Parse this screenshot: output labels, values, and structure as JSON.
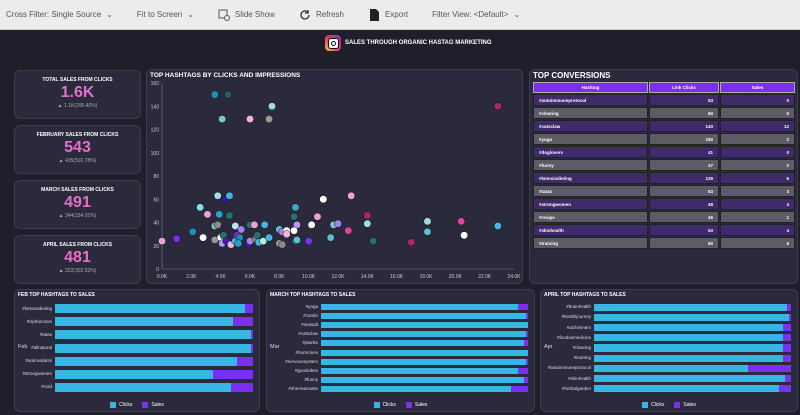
{
  "toolbar": {
    "cross_filter": "Cross Filter: Single Source",
    "fit": "Fit to Screen",
    "slideshow": "Slide Show",
    "refresh": "Refresh",
    "export": "Export",
    "filter_view": "Filter View: <Default>"
  },
  "title": "SALES THROUGH ORGANIC HASTAG MARKETING",
  "kpis": [
    {
      "label": "TOTAL SALES FROM CLICKS",
      "value": "1.6K",
      "delta": "1.1K(295.40%)"
    },
    {
      "label": "FEBRUARY SALES FROM CLICKS",
      "value": "543",
      "delta": "435(502.78%)"
    },
    {
      "label": "MARCH SALES FROM CLICKS",
      "value": "491",
      "delta": "344(334.01%)"
    },
    {
      "label": "APRIL SALES FROM CLICKS",
      "value": "481",
      "delta": "322(302.52%)"
    }
  ],
  "colors": {
    "clicks": "#35b6e3",
    "sales": "#7b2ff0",
    "kpi": "#e46fc9"
  },
  "chart_data": [
    {
      "type": "scatter",
      "title": "TOP HASHTAGS BY CLICKS AND IMPRESSIONS",
      "xlim": [
        0,
        24000
      ],
      "ylim": [
        0,
        160
      ],
      "xticks": [
        "0.0K",
        "2.0K",
        "4.0K",
        "6.0K",
        "8.0K",
        "10.0K",
        "12.0K",
        "14.0K",
        "16.0K",
        "18.0K",
        "20.0K",
        "22.0K",
        "24.0K"
      ],
      "yticks": [
        "0",
        "20",
        "40",
        "60",
        "80",
        "100",
        "120",
        "140",
        "160"
      ],
      "points": [
        [
          3.6,
          150,
          "#1e8fb5"
        ],
        [
          4.5,
          150,
          "#2a5e66"
        ],
        [
          4.1,
          129,
          "#7cc6cc"
        ],
        [
          6.0,
          129,
          "#f7b3dd"
        ],
        [
          7.3,
          129,
          "#9a9a9a"
        ],
        [
          7.5,
          140,
          "#9fdde3"
        ],
        [
          22.9,
          140,
          "#b0236e"
        ],
        [
          3.8,
          63,
          "#9fdde3"
        ],
        [
          4.3,
          60,
          "#3a1aa0"
        ],
        [
          4.6,
          63,
          "#3fb8e0"
        ],
        [
          2.6,
          53,
          "#7fe0f0"
        ],
        [
          3.1,
          47,
          "#f0a0d8"
        ],
        [
          3.9,
          47,
          "#2a9fc7"
        ],
        [
          4.6,
          46,
          "#2a6e70"
        ],
        [
          3.6,
          37,
          "#7cc6cc"
        ],
        [
          3.8,
          38,
          "#8a8a8a"
        ],
        [
          5.0,
          37,
          "#b8e6ea"
        ],
        [
          5.4,
          34,
          "#a780f0"
        ],
        [
          6.0,
          38,
          "#2a6e70"
        ],
        [
          6.3,
          38,
          "#f0a0d8"
        ],
        [
          7.0,
          38,
          "#40b8e0"
        ],
        [
          2.1,
          32,
          "#1e8fb5"
        ],
        [
          1.0,
          26,
          "#7b2ff0"
        ],
        [
          0.0,
          24,
          "#f0a0d8"
        ],
        [
          2.8,
          27,
          "#ffffff"
        ],
        [
          3.6,
          25,
          "#9a9a9a"
        ],
        [
          4.0,
          27,
          "#ffffff"
        ],
        [
          4.2,
          29,
          "#2a6e70"
        ],
        [
          4.1,
          22,
          "#b39af0"
        ],
        [
          4.4,
          24,
          "#4a1ab0"
        ],
        [
          4.7,
          21,
          "#f7b3dd"
        ],
        [
          5.0,
          24,
          "#40b8e0"
        ],
        [
          5.1,
          29,
          "#6a2fd0"
        ],
        [
          5.3,
          27,
          "#1e8fb5"
        ],
        [
          5.2,
          22,
          "#2a9fc7"
        ],
        [
          5.9,
          21,
          "#3a1aa0"
        ],
        [
          6.0,
          24,
          "#a780f0"
        ],
        [
          6.4,
          26,
          "#8a8a8a"
        ],
        [
          6.6,
          23,
          "#40b8e0"
        ],
        [
          6.9,
          24,
          "#b8e6ea"
        ],
        [
          6.5,
          29,
          "#2a6e70"
        ],
        [
          7.3,
          27,
          "#40b8e0"
        ],
        [
          8.0,
          34,
          "#5ec0cc"
        ],
        [
          8.2,
          32,
          "#a780f0"
        ],
        [
          8.5,
          33,
          "#ffffff"
        ],
        [
          8.5,
          30,
          "#f7b3dd"
        ],
        [
          8.0,
          22,
          "#9a9a9a"
        ],
        [
          8.2,
          21,
          "#8a8a8a"
        ],
        [
          9.0,
          45,
          "#2a6e70"
        ],
        [
          9.1,
          53,
          "#3fa8c8"
        ],
        [
          9.2,
          38,
          "#b39af0"
        ],
        [
          9.0,
          33,
          "#ffffff"
        ],
        [
          9.1,
          24,
          "#2a6e70"
        ],
        [
          9.2,
          25,
          "#5ec0cc"
        ],
        [
          10.0,
          24,
          "#7b2ff0"
        ],
        [
          10.2,
          38,
          "#ffffff"
        ],
        [
          10.6,
          45,
          "#f0a0d8"
        ],
        [
          11.0,
          60,
          "#ffffff"
        ],
        [
          11.5,
          27,
          "#5ec0cc"
        ],
        [
          11.7,
          38,
          "#7cc6cc"
        ],
        [
          12.0,
          39,
          "#a780f0"
        ],
        [
          12.7,
          33,
          "#e0449e"
        ],
        [
          12.9,
          63,
          "#f0a0d8"
        ],
        [
          14.0,
          46,
          "#b0236e"
        ],
        [
          14.0,
          39,
          "#9fdde3"
        ],
        [
          14.4,
          24,
          "#2a6e70"
        ],
        [
          17.0,
          23,
          "#b0236e"
        ],
        [
          18.1,
          41,
          "#9fdde3"
        ],
        [
          18.1,
          32,
          "#5ec0cc"
        ],
        [
          20.4,
          41,
          "#e0449e"
        ],
        [
          20.6,
          29,
          "#ffffff"
        ],
        [
          22.9,
          37,
          "#40b8e0"
        ]
      ]
    },
    {
      "type": "bar",
      "title": "FEB TOP HASHTAGS TO SALES",
      "group": "Feb",
      "categories": [
        "#ketosisdieting",
        "#dysfunction",
        "#tatas",
        "#allnatural",
        "#antioxidants",
        "#strongwomen",
        "#cold"
      ],
      "series": [
        {
          "name": "Clicks",
          "values": [
            96,
            90,
            99,
            99,
            92,
            80,
            89
          ]
        },
        {
          "name": "Sales",
          "values": [
            4,
            10,
            1,
            1,
            8,
            20,
            11
          ]
        }
      ]
    },
    {
      "type": "bar",
      "title": "MARCH TOP HASHTAGS TO SALES",
      "group": "Mar",
      "categories": [
        "#yoga",
        "#cardio",
        "#seasalt",
        "#catsclaw",
        "#planks",
        "#hormones",
        "#nervoussystem",
        "#goodvibes",
        "#funny",
        "#shermanoaks"
      ],
      "series": [
        {
          "name": "Clicks",
          "values": [
            95,
            99,
            100,
            99,
            98,
            100,
            99,
            95,
            98,
            92
          ]
        },
        {
          "name": "Sales",
          "values": [
            5,
            1,
            0,
            1,
            2,
            0,
            1,
            5,
            2,
            8
          ]
        }
      ]
    },
    {
      "type": "bar",
      "title": "APRIL TOP HASHTAGS TO SALES",
      "group": "Apr",
      "categories": [
        "#brainhealth",
        "#healthjourney",
        "#alzheimers",
        "#foodasmedicine",
        "#clearing",
        "#training",
        "#autoimmuneprotocol",
        "#skinhealth",
        "#herbalgarden"
      ],
      "series": [
        {
          "name": "Clicks",
          "values": [
            98,
            99,
            96,
            96,
            96,
            96,
            78,
            97,
            94
          ]
        },
        {
          "name": "Sales",
          "values": [
            2,
            1,
            4,
            4,
            4,
            4,
            22,
            3,
            6
          ]
        }
      ]
    }
  ],
  "table": {
    "title": "TOP CONVERSIONS",
    "headers": [
      "Hashtag",
      "Link Clicks",
      "Sales"
    ],
    "rows": [
      [
        "#autoimmuneprotocol",
        "53",
        "0"
      ],
      [
        "#clearing",
        "60",
        "5"
      ],
      [
        "#catsclaw",
        "140",
        "12"
      ],
      [
        "#yoga",
        "150",
        "2"
      ],
      [
        "#doglovers",
        "41",
        "0"
      ],
      [
        "#funny",
        "47",
        "2"
      ],
      [
        "#ketosisdieting",
        "129",
        "6"
      ],
      [
        "#tatas",
        "63",
        "3"
      ],
      [
        "#strongwomen",
        "48",
        "4"
      ],
      [
        "#recipe",
        "45",
        "1"
      ],
      [
        "#skinhealth",
        "53",
        "4"
      ],
      [
        "#training",
        "60",
        "6"
      ]
    ]
  },
  "legend": {
    "clicks": "Clicks",
    "sales": "Sales"
  }
}
